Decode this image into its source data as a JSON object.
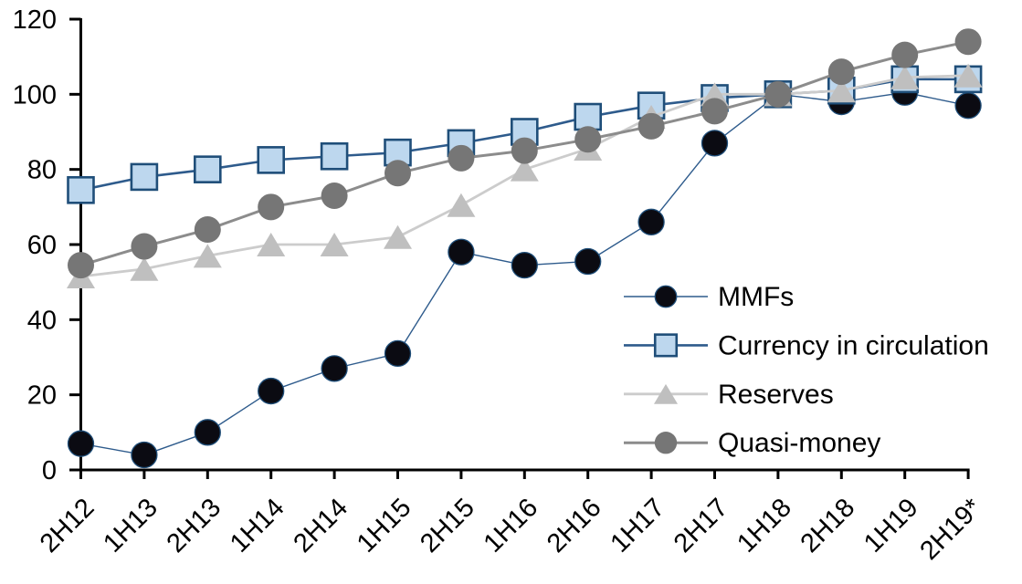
{
  "chart_data": {
    "type": "line",
    "title": "",
    "xlabel": "",
    "ylabel": "",
    "ylim": [
      0,
      120
    ],
    "ytick_step": 20,
    "ytick_labels": [
      "0",
      "20",
      "40",
      "60",
      "80",
      "100",
      "120"
    ],
    "grid": false,
    "legend_position": "inside-right",
    "axis_color": "#000000",
    "label_color": "#000000",
    "categories": [
      "2H12",
      "1H13",
      "2H13",
      "1H14",
      "2H14",
      "1H15",
      "2H15",
      "1H16",
      "2H16",
      "1H17",
      "2H17",
      "1H18",
      "2H18",
      "1H19",
      "2H19*"
    ],
    "series": [
      {
        "name": "MMFs",
        "marker": "circle",
        "marker_size": 14,
        "fill": "#0b0b12",
        "stroke": "#1F4E79",
        "stroke_width": 1.3,
        "line_color": "#2E5B8C",
        "line_width": 1.4,
        "values": [
          7,
          4,
          10,
          21,
          27,
          31,
          58,
          54.5,
          55.5,
          66,
          87,
          100,
          98,
          100.5,
          97
        ]
      },
      {
        "name": "Currency in circulation",
        "marker": "square",
        "marker_size": 28,
        "fill": "#BDD7EE",
        "stroke": "#1F4E79",
        "stroke_width": 2.6,
        "line_color": "#2E5B8C",
        "line_width": 2.6,
        "values": [
          74.5,
          78,
          80,
          82.5,
          83.5,
          84.5,
          87,
          90,
          94,
          97,
          99,
          100,
          101,
          104,
          104
        ]
      },
      {
        "name": "Reserves",
        "marker": "triangle",
        "marker_size": 31,
        "fill": "#BFBFBF",
        "stroke": "none",
        "stroke_width": 0,
        "line_color": "#CCCCCC",
        "line_width": 2.8,
        "values": [
          51.5,
          53.5,
          57,
          60,
          60,
          62,
          70.5,
          80,
          85.5,
          94,
          100,
          100,
          101,
          104.5,
          105
        ]
      },
      {
        "name": "Quasi-money",
        "marker": "circle",
        "marker_size": 14.5,
        "fill": "#767676",
        "stroke": "none",
        "stroke_width": 0,
        "line_color": "#8C8C8C",
        "line_width": 3,
        "values": [
          54.5,
          59.5,
          64,
          70,
          73,
          79,
          83,
          85,
          88,
          91.5,
          95.5,
          100,
          106,
          110.5,
          114
        ]
      }
    ],
    "legend_entries": [
      "MMFs",
      "Currency in circulation",
      "Reserves",
      "Quasi-money"
    ]
  }
}
